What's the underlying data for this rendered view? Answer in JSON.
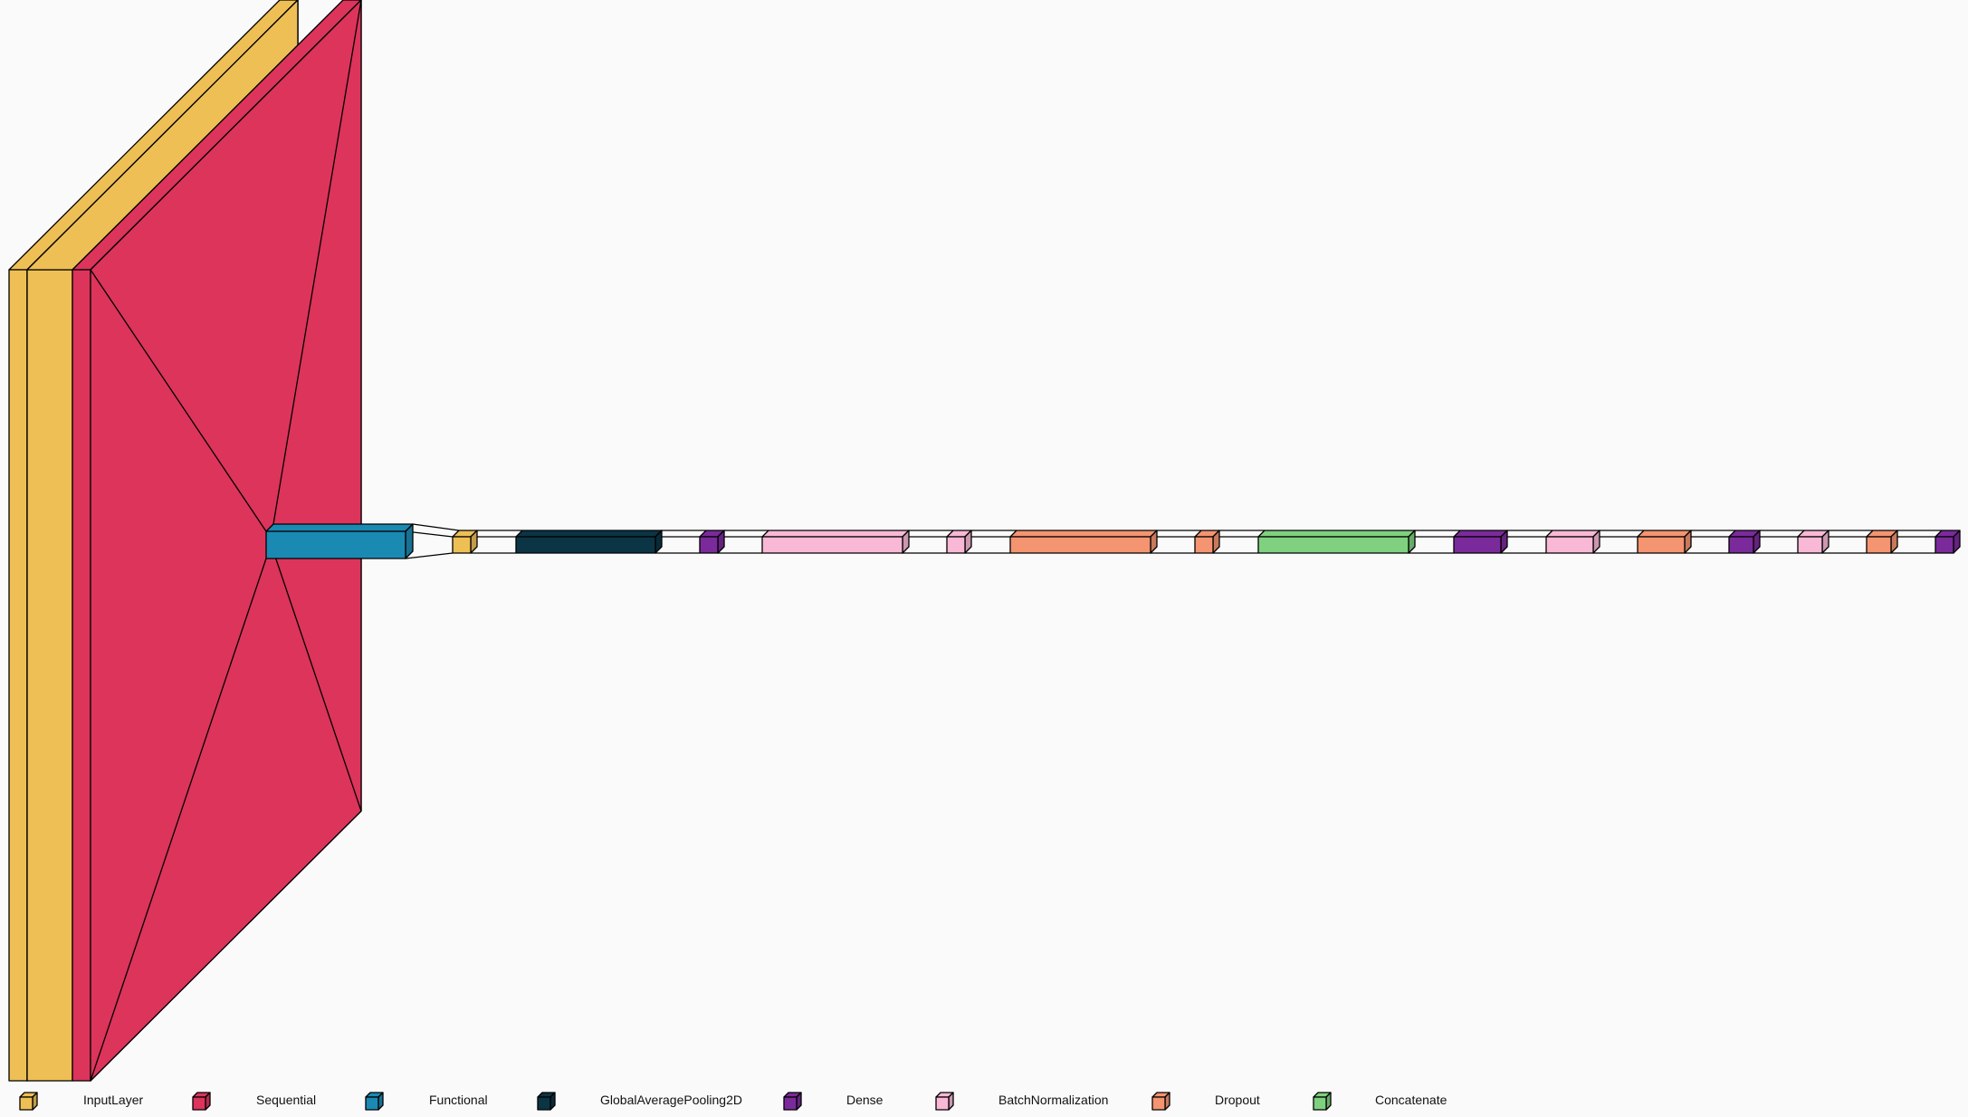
{
  "layer_types": [
    {
      "key": "input",
      "label": "InputLayer",
      "color": "#EEBF55"
    },
    {
      "key": "sequential",
      "label": "Sequential",
      "color": "#DC345B"
    },
    {
      "key": "functional",
      "label": "Functional",
      "color": "#1B8AB3"
    },
    {
      "key": "gap",
      "label": "GlobalAveragePooling2D",
      "color": "#0B3544"
    },
    {
      "key": "dense",
      "label": "Dense",
      "color": "#7B2A9B"
    },
    {
      "key": "bn",
      "label": "BatchNormalization",
      "color": "#F9B8D6"
    },
    {
      "key": "dropout",
      "label": "Dropout",
      "color": "#F49470"
    },
    {
      "key": "concat",
      "label": "Concatenate",
      "color": "#7FD17F"
    }
  ],
  "layers": [
    {
      "type": "input"
    },
    {
      "type": "sequential"
    },
    {
      "type": "functional"
    },
    {
      "type": "input"
    },
    {
      "type": "gap"
    },
    {
      "type": "dense"
    },
    {
      "type": "bn"
    },
    {
      "type": "bn"
    },
    {
      "type": "dropout"
    },
    {
      "type": "dropout"
    },
    {
      "type": "concat"
    },
    {
      "type": "dense"
    },
    {
      "type": "bn"
    },
    {
      "type": "dropout"
    },
    {
      "type": "dense"
    },
    {
      "type": "bn"
    },
    {
      "type": "dropout"
    },
    {
      "type": "dense"
    }
  ]
}
